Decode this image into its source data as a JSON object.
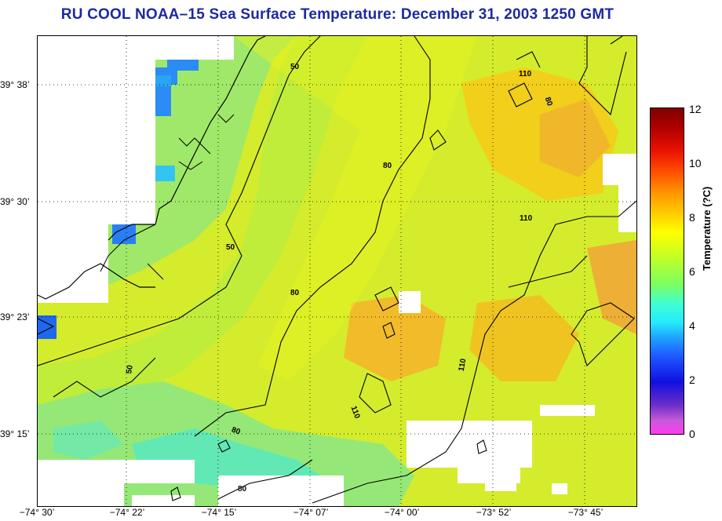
{
  "title": "RU COOL  NOAA–15  Sea Surface Temperature:  December 31, 2003 1250 GMT",
  "y_axis_labels": [
    "39° 38’",
    "39° 30’",
    "39° 23’",
    "39° 15’"
  ],
  "x_axis_labels": [
    "−74° 30’",
    "−74° 22’",
    "−74° 15’",
    "−74° 07’",
    "−74° 00’",
    "−73° 52’",
    "−73° 45’"
  ],
  "contour_labels": [
    "50",
    "50",
    "50",
    "80",
    "80",
    "80",
    "80",
    "80",
    "110",
    "110",
    "110",
    "110"
  ],
  "colorbar": {
    "title": "Temperature (?C)",
    "ticks": [
      "12",
      "10",
      "8",
      "6",
      "4",
      "2",
      "0"
    ],
    "range": [
      0,
      12
    ]
  }
}
